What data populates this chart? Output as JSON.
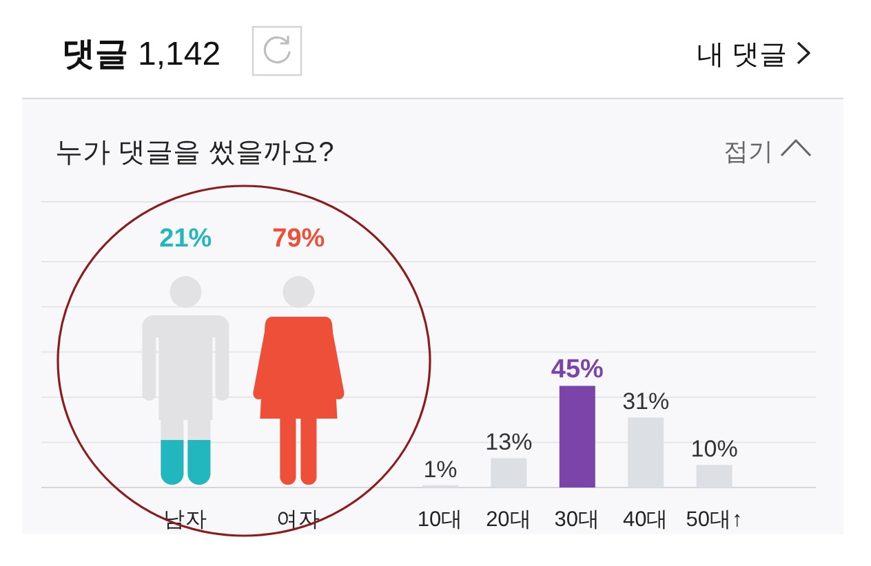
{
  "chart_data": [
    {
      "type": "other",
      "title": "누가 댓글을 썼을까요?",
      "annotations": [
        "댓글",
        "1,142",
        "내 댓글",
        "접기"
      ],
      "categories": [
        "남자",
        "여자"
      ],
      "values": [
        21,
        79
      ],
      "colors": [
        "#22b6bf",
        "#ee4f38"
      ],
      "value_labels": [
        "21%",
        "79%"
      ]
    },
    {
      "type": "bar",
      "categories": [
        "10대",
        "20대",
        "30대",
        "40대",
        "50대↑"
      ],
      "values": [
        1,
        13,
        45,
        31,
        10
      ],
      "colors": [
        "#dcdfe3",
        "#dcdfe3",
        "#7b44a8",
        "#dcdfe3",
        "#dcdfe3"
      ],
      "value_labels": [
        "1%",
        "13%",
        "45%",
        "31%",
        "10%"
      ],
      "ylim": [
        0,
        100
      ],
      "yticks": [
        {
          "value": 0,
          "label": null
        },
        {
          "value": 20,
          "label": null
        },
        {
          "value": 40,
          "label": null
        },
        {
          "value": 60,
          "label": null
        },
        {
          "value": 80,
          "label": null
        },
        {
          "value": 100,
          "label": null
        }
      ],
      "grid": "y",
      "tick_labels": "x"
    }
  ]
}
